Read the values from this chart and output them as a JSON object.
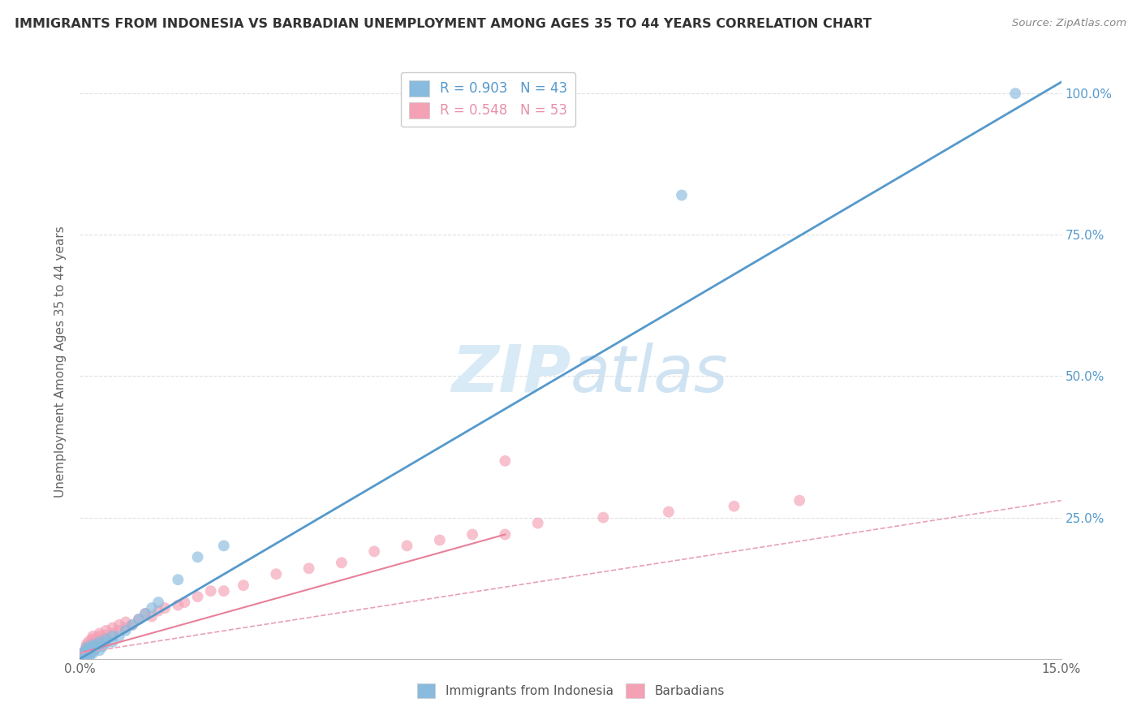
{
  "title": "IMMIGRANTS FROM INDONESIA VS BARBADIAN UNEMPLOYMENT AMONG AGES 35 TO 44 YEARS CORRELATION CHART",
  "source": "Source: ZipAtlas.com",
  "ylabel": "Unemployment Among Ages 35 to 44 years",
  "xlim": [
    0.0,
    0.15
  ],
  "ylim": [
    0.0,
    1.05
  ],
  "y_ticks_right": [
    0.0,
    0.25,
    0.5,
    0.75,
    1.0
  ],
  "y_tick_labels_right": [
    "",
    "25.0%",
    "50.0%",
    "75.0%",
    "100.0%"
  ],
  "blue_color": "#88bbdd",
  "pink_color": "#f4a0b5",
  "blue_line_color": "#5599cc",
  "pink_line_color": "#e8809a",
  "pink_dash_color": "#e8a0b8",
  "watermark_color": "#d8eaf5",
  "background_color": "#ffffff",
  "grid_color": "#e0e0e0",
  "blue_scatter_x": [
    0.0003,
    0.0005,
    0.0006,
    0.0007,
    0.0008,
    0.0009,
    0.001,
    0.001,
    0.001,
    0.0012,
    0.0013,
    0.0014,
    0.0015,
    0.0016,
    0.0017,
    0.0018,
    0.002,
    0.002,
    0.002,
    0.0022,
    0.0025,
    0.003,
    0.003,
    0.003,
    0.0035,
    0.004,
    0.004,
    0.005,
    0.005,
    0.006,
    0.007,
    0.008,
    0.009,
    0.01,
    0.011,
    0.012,
    0.015,
    0.018,
    0.022,
    0.092,
    0.143
  ],
  "blue_scatter_y": [
    0.01,
    0.005,
    0.008,
    0.003,
    0.012,
    0.007,
    0.015,
    0.008,
    0.02,
    0.01,
    0.005,
    0.018,
    0.012,
    0.007,
    0.015,
    0.022,
    0.018,
    0.01,
    0.025,
    0.015,
    0.02,
    0.025,
    0.015,
    0.03,
    0.022,
    0.028,
    0.035,
    0.03,
    0.04,
    0.04,
    0.05,
    0.06,
    0.07,
    0.08,
    0.09,
    0.1,
    0.14,
    0.18,
    0.2,
    0.82,
    1.0
  ],
  "pink_scatter_x": [
    0.0003,
    0.0005,
    0.0006,
    0.0008,
    0.001,
    0.001,
    0.001,
    0.0012,
    0.0013,
    0.0015,
    0.0016,
    0.0018,
    0.002,
    0.002,
    0.0022,
    0.0025,
    0.003,
    0.003,
    0.0035,
    0.004,
    0.004,
    0.005,
    0.005,
    0.006,
    0.006,
    0.007,
    0.007,
    0.008,
    0.009,
    0.01,
    0.011,
    0.012,
    0.013,
    0.015,
    0.016,
    0.018,
    0.02,
    0.022,
    0.025,
    0.03,
    0.035,
    0.04,
    0.045,
    0.05,
    0.055,
    0.06,
    0.065,
    0.07,
    0.08,
    0.09,
    0.1,
    0.11,
    0.065
  ],
  "pink_scatter_y": [
    0.005,
    0.01,
    0.008,
    0.015,
    0.012,
    0.02,
    0.025,
    0.018,
    0.03,
    0.015,
    0.025,
    0.035,
    0.02,
    0.04,
    0.03,
    0.035,
    0.04,
    0.045,
    0.038,
    0.05,
    0.042,
    0.055,
    0.045,
    0.06,
    0.05,
    0.055,
    0.065,
    0.06,
    0.07,
    0.08,
    0.075,
    0.085,
    0.09,
    0.095,
    0.1,
    0.11,
    0.12,
    0.12,
    0.13,
    0.15,
    0.16,
    0.17,
    0.19,
    0.2,
    0.21,
    0.22,
    0.22,
    0.24,
    0.25,
    0.26,
    0.27,
    0.28,
    0.35
  ],
  "blue_line_x": [
    0.0,
    0.15
  ],
  "blue_line_y": [
    0.0,
    1.02
  ],
  "pink_solid_line_x": [
    0.0,
    0.065
  ],
  "pink_solid_line_y": [
    0.01,
    0.22
  ],
  "pink_dash_line_x": [
    0.0,
    0.15
  ],
  "pink_dash_line_y": [
    0.01,
    0.28
  ]
}
